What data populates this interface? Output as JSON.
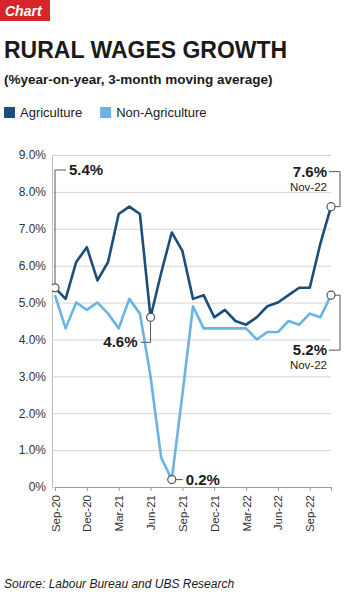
{
  "chart_data": {
    "type": "line",
    "badge": "Chart",
    "title": "RURAL WAGES GROWTH",
    "subtitle": "(%year-on-year, 3-month moving average)",
    "source": "Source: Labour Bureau and UBS Research",
    "categories": [
      "Sep-20",
      null,
      null,
      "Dec-20",
      null,
      null,
      "Mar-21",
      null,
      null,
      "Jun-21",
      null,
      null,
      "Sep-21",
      null,
      null,
      "Dec-21",
      null,
      null,
      "Mar-22",
      null,
      null,
      "Jun-22",
      null,
      null,
      "Sep-22",
      null,
      null
    ],
    "series": [
      {
        "name": "Agriculture",
        "color": "#1b4e7b",
        "values": [
          5.4,
          5.1,
          6.1,
          6.5,
          5.6,
          6.1,
          7.4,
          7.6,
          7.4,
          4.6,
          5.8,
          6.9,
          6.4,
          5.1,
          5.2,
          4.6,
          4.8,
          4.5,
          4.4,
          4.6,
          4.9,
          5.0,
          5.2,
          5.4,
          5.4,
          6.6,
          7.6
        ]
      },
      {
        "name": "Non-Agriculture",
        "color": "#6ab3e3",
        "values": [
          5.2,
          4.3,
          5.0,
          4.8,
          5.0,
          4.7,
          4.3,
          5.1,
          4.7,
          3.0,
          0.8,
          0.2,
          2.5,
          4.9,
          4.3,
          4.3,
          4.3,
          4.3,
          4.3,
          4.0,
          4.2,
          4.2,
          4.5,
          4.4,
          4.7,
          4.6,
          5.2
        ]
      }
    ],
    "ylim": [
      0,
      9
    ],
    "yticks": [
      {
        "value": 0,
        "label": "0%"
      },
      {
        "value": 1,
        "label": "1.0%"
      },
      {
        "value": 2,
        "label": "2.0%"
      },
      {
        "value": 3,
        "label": "3.0%"
      },
      {
        "value": 4,
        "label": "4.0%"
      },
      {
        "value": 5,
        "label": "5.0%"
      },
      {
        "value": 6,
        "label": "6.0%"
      },
      {
        "value": 7,
        "label": "7.0%"
      },
      {
        "value": 8,
        "label": "8.0%"
      },
      {
        "value": 9,
        "label": "9.0%"
      }
    ],
    "grid": true,
    "legend": "top",
    "annotations": [
      {
        "label": "5.4%",
        "series": 0,
        "index": 0
      },
      {
        "label": "4.6%",
        "series": 0,
        "index": 9
      },
      {
        "label": "0.2%",
        "series": 1,
        "index": 11
      },
      {
        "label": "7.6%",
        "sublabel": "Nov-22",
        "series": 0,
        "index": 26
      },
      {
        "label": "5.2%",
        "sublabel": "Nov-22",
        "series": 1,
        "index": 26
      }
    ]
  }
}
